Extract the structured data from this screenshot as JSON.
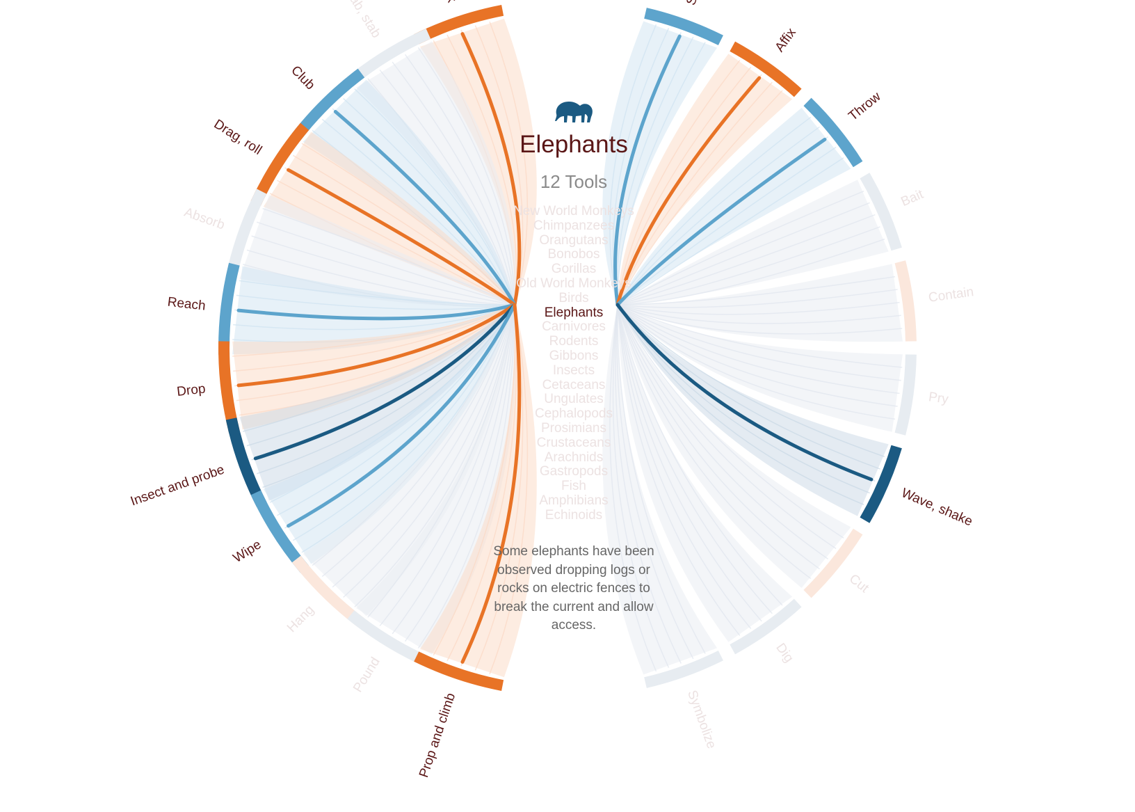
{
  "title": "Elephants",
  "subtitle": "12 Tools",
  "icon": "elephant-icon",
  "description": "Some elephants have been observed dropping logs or rocks on electric fences to break the current and allow access.",
  "colors": {
    "orange": "#e87326",
    "blue": "#5da4cc",
    "dark_blue": "#1b5a82",
    "label_active": "#5a1616",
    "label_inactive": "#ece2e2",
    "inactive_arc": "#e7ecf1",
    "inactive_arc_orange": "#fbe7dc"
  },
  "species": [
    {
      "name": "New World Monkeys",
      "active": false
    },
    {
      "name": "Chimpanzees",
      "active": false
    },
    {
      "name": "Orangutans",
      "active": false
    },
    {
      "name": "Bonobos",
      "active": false
    },
    {
      "name": "Gorillas",
      "active": false
    },
    {
      "name": "Old World Monkeys",
      "active": false
    },
    {
      "name": "Birds",
      "active": false
    },
    {
      "name": "Elephants",
      "active": true
    },
    {
      "name": "Carnivores",
      "active": false
    },
    {
      "name": "Rodents",
      "active": false
    },
    {
      "name": "Gibbons",
      "active": false
    },
    {
      "name": "Insects",
      "active": false
    },
    {
      "name": "Cetaceans",
      "active": false
    },
    {
      "name": "Ungulates",
      "active": false
    },
    {
      "name": "Cephalopods",
      "active": false
    },
    {
      "name": "Prosimians",
      "active": false
    },
    {
      "name": "Crustaceans",
      "active": false
    },
    {
      "name": "Arachnids",
      "active": false
    },
    {
      "name": "Gastropods",
      "active": false
    },
    {
      "name": "Fish",
      "active": false
    },
    {
      "name": "Amphibians",
      "active": false
    },
    {
      "name": "Echinoids",
      "active": false
    }
  ],
  "tools": {
    "left": [
      {
        "name": "Block",
        "active": true,
        "color": "orange"
      },
      {
        "name": "Jab, stab",
        "active": false,
        "color": "blue"
      },
      {
        "name": "Club",
        "active": true,
        "color": "blue"
      },
      {
        "name": "Drag, roll",
        "active": true,
        "color": "orange"
      },
      {
        "name": "Absorb",
        "active": false,
        "color": "blue"
      },
      {
        "name": "Reach",
        "active": true,
        "color": "blue"
      },
      {
        "name": "Drop",
        "active": true,
        "color": "orange"
      },
      {
        "name": "Insect and probe",
        "active": true,
        "color": "dark_blue"
      },
      {
        "name": "Wipe",
        "active": true,
        "color": "blue"
      },
      {
        "name": "Hang",
        "active": false,
        "color": "orange"
      },
      {
        "name": "Pound",
        "active": false,
        "color": "blue"
      },
      {
        "name": "Prop and climb",
        "active": true,
        "color": "orange"
      }
    ],
    "right": [
      {
        "name": "Scratch",
        "active": true,
        "color": "blue"
      },
      {
        "name": "Affix",
        "active": true,
        "color": "orange"
      },
      {
        "name": "Throw",
        "active": true,
        "color": "blue"
      },
      {
        "name": "Bait",
        "active": false,
        "color": "blue"
      },
      {
        "name": "Contain",
        "active": false,
        "color": "orange"
      },
      {
        "name": "Pry",
        "active": false,
        "color": "blue"
      },
      {
        "name": "Wave, shake",
        "active": true,
        "color": "dark_blue"
      },
      {
        "name": "Cut",
        "active": false,
        "color": "orange"
      },
      {
        "name": "Dig",
        "active": false,
        "color": "blue"
      },
      {
        "name": "Symbolize",
        "active": false,
        "color": "blue"
      }
    ]
  }
}
